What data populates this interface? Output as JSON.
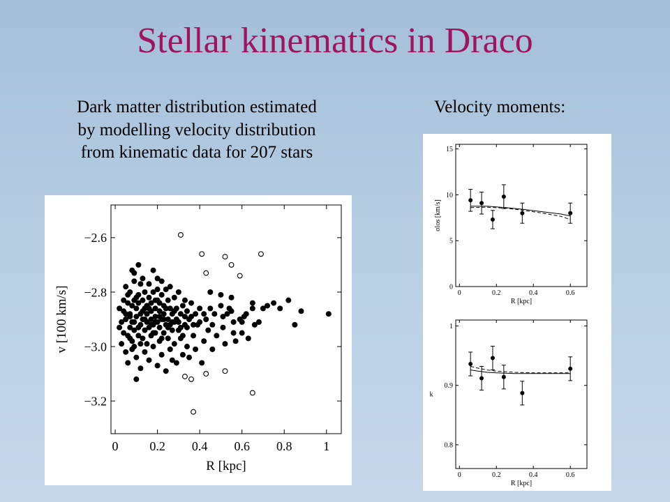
{
  "slide": {
    "title": "Stellar kinematics in Draco",
    "description_lines": [
      "Dark matter distribution estimated",
      "by modelling velocity distribution",
      "from kinematic data for 207 stars"
    ],
    "moments_label": "Velocity moments:"
  },
  "chart_data": [
    {
      "type": "scatter",
      "xlabel": "R [kpc]",
      "ylabel": "v [100 km/s]",
      "xlim": [
        -0.02,
        1.07
      ],
      "ylim": [
        -3.32,
        -2.48
      ],
      "xticks": [
        0,
        0.2,
        0.4,
        0.6,
        0.8,
        1
      ],
      "xtick_labels": [
        "0",
        "0.2",
        "0.4",
        "0.6",
        "0.8",
        "1"
      ],
      "yticks": [
        -2.6,
        -2.8,
        -3.0,
        -3.2
      ],
      "ytick_labels": [
        "−2.6",
        "−2.8",
        "−3.0",
        "−3.2"
      ],
      "grid": false,
      "series": [
        {
          "marker": "filled-circle",
          "points": [
            [
              0.02,
              -2.86
            ],
            [
              0.03,
              -2.91
            ],
            [
              0.03,
              -2.99
            ],
            [
              0.04,
              -2.95
            ],
            [
              0.04,
              -2.83
            ],
            [
              0.05,
              -2.78
            ],
            [
              0.05,
              -3.02
            ],
            [
              0.05,
              -2.9
            ],
            [
              0.06,
              -2.84
            ],
            [
              0.06,
              -2.96
            ],
            [
              0.06,
              -3.06
            ],
            [
              0.07,
              -2.8
            ],
            [
              0.07,
              -2.88
            ],
            [
              0.07,
              -2.93
            ],
            [
              0.08,
              -2.85
            ],
            [
              0.08,
              -2.72
            ],
            [
              0.08,
              -2.98
            ],
            [
              0.08,
              -2.91
            ],
            [
              0.09,
              -2.76
            ],
            [
              0.09,
              -2.83
            ],
            [
              0.09,
              -2.94
            ],
            [
              0.09,
              -3.0
            ],
            [
              0.09,
              -2.73
            ],
            [
              0.1,
              -2.86
            ],
            [
              0.1,
              -2.89
            ],
            [
              0.1,
              -3.04
            ],
            [
              0.1,
              -3.12
            ],
            [
              0.11,
              -2.81
            ],
            [
              0.11,
              -2.96
            ],
            [
              0.11,
              -2.84
            ],
            [
              0.11,
              -2.7
            ],
            [
              0.12,
              -2.88
            ],
            [
              0.12,
              -2.92
            ],
            [
              0.12,
              -3.08
            ],
            [
              0.12,
              -2.77
            ],
            [
              0.13,
              -2.83
            ],
            [
              0.13,
              -2.9
            ],
            [
              0.13,
              -2.97
            ],
            [
              0.13,
              -2.75
            ],
            [
              0.14,
              -2.86
            ],
            [
              0.14,
              -2.94
            ],
            [
              0.14,
              -3.02
            ],
            [
              0.14,
              -2.8
            ],
            [
              0.15,
              -2.88
            ],
            [
              0.15,
              -2.91
            ],
            [
              0.15,
              -2.85
            ],
            [
              0.15,
              -2.99
            ],
            [
              0.16,
              -2.82
            ],
            [
              0.16,
              -2.93
            ],
            [
              0.16,
              -2.77
            ],
            [
              0.16,
              -3.05
            ],
            [
              0.17,
              -2.87
            ],
            [
              0.17,
              -2.9
            ],
            [
              0.17,
              -2.84
            ],
            [
              0.17,
              -2.96
            ],
            [
              0.18,
              -2.8
            ],
            [
              0.18,
              -2.92
            ],
            [
              0.18,
              -2.72
            ],
            [
              0.18,
              -3.0
            ],
            [
              0.19,
              -2.86
            ],
            [
              0.19,
              -2.95
            ],
            [
              0.19,
              -2.83
            ],
            [
              0.19,
              -2.89
            ],
            [
              0.2,
              -2.79
            ],
            [
              0.2,
              -2.91
            ],
            [
              0.2,
              -3.07
            ],
            [
              0.2,
              -2.75
            ],
            [
              0.21,
              -2.87
            ],
            [
              0.21,
              -2.98
            ],
            [
              0.21,
              -2.84
            ],
            [
              0.21,
              -2.93
            ],
            [
              0.22,
              -2.81
            ],
            [
              0.22,
              -2.9
            ],
            [
              0.22,
              -2.76
            ],
            [
              0.22,
              -3.03
            ],
            [
              0.23,
              -2.88
            ],
            [
              0.23,
              -2.95
            ],
            [
              0.23,
              -2.85
            ],
            [
              0.24,
              -2.92
            ],
            [
              0.24,
              -2.79
            ],
            [
              0.24,
              -3.09
            ],
            [
              0.25,
              -2.83
            ],
            [
              0.25,
              -2.97
            ],
            [
              0.25,
              -2.9
            ],
            [
              0.26,
              -2.86
            ],
            [
              0.26,
              -3.01
            ],
            [
              0.26,
              -2.78
            ],
            [
              0.27,
              -2.94
            ],
            [
              0.27,
              -2.88
            ],
            [
              0.27,
              -3.05
            ],
            [
              0.28,
              -2.82
            ],
            [
              0.28,
              -2.91
            ],
            [
              0.28,
              -2.99
            ],
            [
              0.29,
              -2.86
            ],
            [
              0.29,
              -3.06
            ],
            [
              0.3,
              -2.94
            ],
            [
              0.3,
              -2.8
            ],
            [
              0.31,
              -2.97
            ],
            [
              0.31,
              -2.88
            ],
            [
              0.32,
              -2.85
            ],
            [
              0.32,
              -3.03
            ],
            [
              0.33,
              -2.92
            ],
            [
              0.33,
              -2.83
            ],
            [
              0.34,
              -3.0
            ],
            [
              0.34,
              -2.87
            ],
            [
              0.35,
              -2.9
            ],
            [
              0.35,
              -3.04
            ],
            [
              0.36,
              -2.84
            ],
            [
              0.37,
              -2.96
            ],
            [
              0.38,
              -2.88
            ],
            [
              0.38,
              -3.01
            ],
            [
              0.39,
              -2.92
            ],
            [
              0.4,
              -2.86
            ],
            [
              0.41,
              -3.06
            ],
            [
              0.42,
              -2.98
            ],
            [
              0.43,
              -2.9
            ],
            [
              0.44,
              -2.94
            ],
            [
              0.45,
              -2.8
            ],
            [
              0.46,
              -3.01
            ],
            [
              0.47,
              -2.88
            ],
            [
              0.48,
              -2.96
            ],
            [
              0.5,
              -2.85
            ],
            [
              0.51,
              -2.93
            ],
            [
              0.52,
              -2.99
            ],
            [
              0.53,
              -2.88
            ],
            [
              0.54,
              -2.86
            ],
            [
              0.55,
              -2.82
            ],
            [
              0.56,
              -2.91
            ],
            [
              0.57,
              -2.98
            ],
            [
              0.59,
              -2.9
            ],
            [
              0.6,
              -2.95
            ],
            [
              0.62,
              -2.88
            ],
            [
              0.63,
              -2.97
            ],
            [
              0.65,
              -2.84
            ],
            [
              0.66,
              -2.92
            ],
            [
              0.68,
              -2.91
            ],
            [
              0.7,
              -2.86
            ],
            [
              0.72,
              -2.85
            ],
            [
              0.75,
              -2.84
            ],
            [
              0.78,
              -2.86
            ],
            [
              0.82,
              -2.83
            ],
            [
              0.85,
              -2.92
            ],
            [
              0.88,
              -2.87
            ],
            [
              1.01,
              -2.88
            ],
            [
              0.02,
              -2.93
            ],
            [
              0.04,
              -2.87
            ],
            [
              0.06,
              -2.81
            ],
            [
              0.07,
              -2.97
            ],
            [
              0.08,
              -3.01
            ],
            [
              0.1,
              -2.82
            ],
            [
              0.12,
              -2.99
            ],
            [
              0.14,
              -2.9
            ],
            [
              0.16,
              -2.86
            ],
            [
              0.18,
              -2.95
            ],
            [
              0.2,
              -2.83
            ],
            [
              0.22,
              -2.97
            ],
            [
              0.24,
              -2.86
            ],
            [
              0.26,
              -2.92
            ],
            [
              0.28,
              -2.87
            ],
            [
              0.3,
              -2.91
            ],
            [
              0.32,
              -2.96
            ],
            [
              0.34,
              -2.93
            ],
            [
              0.36,
              -2.89
            ],
            [
              0.4,
              -2.91
            ],
            [
              0.45,
              -2.86
            ],
            [
              0.5,
              -2.81
            ],
            [
              0.55,
              -2.87
            ],
            [
              0.6,
              -2.91
            ],
            [
              0.65,
              -2.86
            ],
            [
              0.05,
              -2.88
            ],
            [
              0.09,
              -2.91
            ],
            [
              0.13,
              -2.87
            ],
            [
              0.17,
              -2.92
            ],
            [
              0.21,
              -2.89
            ],
            [
              0.25,
              -2.93
            ],
            [
              0.29,
              -2.9
            ],
            [
              0.33,
              -2.89
            ],
            [
              0.37,
              -2.92
            ],
            [
              0.42,
              -2.88
            ],
            [
              0.46,
              -2.92
            ],
            [
              0.51,
              -2.89
            ],
            [
              0.56,
              -2.95
            ],
            [
              0.61,
              -2.89
            ],
            [
              0.07,
              -2.89
            ],
            [
              0.11,
              -2.93
            ],
            [
              0.15,
              -2.88
            ],
            [
              0.19,
              -2.91
            ],
            [
              0.23,
              -2.9
            ],
            [
              0.27,
              -2.91
            ],
            [
              0.31,
              -2.93
            ]
          ]
        },
        {
          "marker": "open-circle",
          "points": [
            [
              0.31,
              -2.59
            ],
            [
              0.41,
              -2.66
            ],
            [
              0.43,
              -2.73
            ],
            [
              0.52,
              -2.67
            ],
            [
              0.55,
              -2.7
            ],
            [
              0.59,
              -2.74
            ],
            [
              0.69,
              -2.66
            ],
            [
              0.33,
              -3.11
            ],
            [
              0.36,
              -3.12
            ],
            [
              0.43,
              -3.1
            ],
            [
              0.52,
              -3.09
            ],
            [
              0.65,
              -3.17
            ],
            [
              0.37,
              -3.24
            ]
          ]
        }
      ]
    },
    {
      "type": "line",
      "xlabel": "R [kpc]",
      "ylabel": "σlos [km/s]",
      "xlim": [
        -0.02,
        0.69
      ],
      "ylim": [
        0,
        15.5
      ],
      "xticks": [
        0,
        0.2,
        0.4,
        0.6
      ],
      "xtick_labels": [
        "0",
        "0.2",
        "0.4",
        "0.6"
      ],
      "yticks": [
        0,
        5,
        10,
        15
      ],
      "ytick_labels": [
        "0",
        "5",
        "10",
        "15"
      ],
      "grid": false,
      "data_points": [
        {
          "x": 0.06,
          "y": 9.4,
          "err": 1.2
        },
        {
          "x": 0.12,
          "y": 9.1,
          "err": 1.2
        },
        {
          "x": 0.18,
          "y": 7.3,
          "err": 1.0
        },
        {
          "x": 0.24,
          "y": 9.8,
          "err": 1.3
        },
        {
          "x": 0.34,
          "y": 8.0,
          "err": 1.1
        },
        {
          "x": 0.6,
          "y": 8.0,
          "err": 1.1
        }
      ],
      "model_lines": [
        {
          "style": "solid",
          "x": [
            0.06,
            0.15,
            0.25,
            0.35,
            0.45,
            0.55,
            0.6
          ],
          "y": [
            8.75,
            8.75,
            8.6,
            8.4,
            8.15,
            7.9,
            7.7
          ]
        },
        {
          "style": "dashed",
          "x": [
            0.06,
            0.15,
            0.25,
            0.35,
            0.45,
            0.55,
            0.6
          ],
          "y": [
            8.6,
            8.65,
            8.55,
            8.3,
            8.0,
            7.65,
            7.3
          ]
        }
      ]
    },
    {
      "type": "line",
      "xlabel": "R [kpc]",
      "ylabel": "k",
      "xlim": [
        -0.02,
        0.69
      ],
      "ylim": [
        0.76,
        1.01
      ],
      "xticks": [
        0,
        0.2,
        0.4,
        0.6
      ],
      "xtick_labels": [
        "0",
        "0.2",
        "0.4",
        "0.6"
      ],
      "yticks": [
        0.8,
        0.9,
        1
      ],
      "ytick_labels": [
        "0.8",
        "0.9",
        "1"
      ],
      "grid": false,
      "data_points": [
        {
          "x": 0.06,
          "y": 0.936,
          "err": 0.02
        },
        {
          "x": 0.12,
          "y": 0.912,
          "err": 0.02
        },
        {
          "x": 0.18,
          "y": 0.946,
          "err": 0.02
        },
        {
          "x": 0.24,
          "y": 0.914,
          "err": 0.02
        },
        {
          "x": 0.34,
          "y": 0.887,
          "err": 0.02
        },
        {
          "x": 0.6,
          "y": 0.928,
          "err": 0.02
        }
      ],
      "model_lines": [
        {
          "style": "solid",
          "x": [
            0.06,
            0.1,
            0.15,
            0.2,
            0.3,
            0.4,
            0.5,
            0.6
          ],
          "y": [
            0.926,
            0.924,
            0.922,
            0.921,
            0.92,
            0.92,
            0.92,
            0.92
          ]
        },
        {
          "style": "dashed",
          "x": [
            0.06,
            0.1,
            0.15,
            0.2,
            0.3,
            0.4,
            0.5,
            0.6
          ],
          "y": [
            0.932,
            0.929,
            0.926,
            0.924,
            0.922,
            0.921,
            0.921,
            0.921
          ]
        }
      ]
    }
  ]
}
